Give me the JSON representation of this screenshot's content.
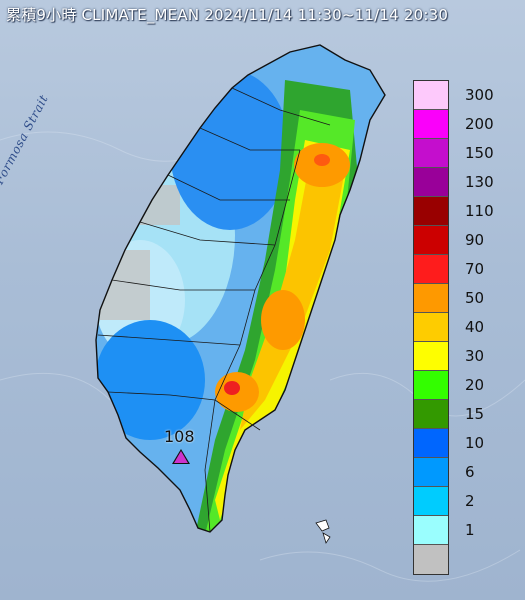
{
  "title": "累積9小時 CLIMATE_MEAN 2024/11/14 11:30~11/14 20:30",
  "strait_label": "Formosa Strait",
  "station": {
    "label": "108",
    "marker_color": "#cc33cc"
  },
  "legend": [
    {
      "label": "300",
      "color": "#fdc9fb"
    },
    {
      "label": "200",
      "color": "#fa00fa"
    },
    {
      "label": "150",
      "color": "#c40ecd"
    },
    {
      "label": "130",
      "color": "#990099"
    },
    {
      "label": "110",
      "color": "#990000"
    },
    {
      "label": "90",
      "color": "#cc0000"
    },
    {
      "label": "70",
      "color": "#fe1c1c"
    },
    {
      "label": "50",
      "color": "#fe9900"
    },
    {
      "label": "40",
      "color": "#fecc00"
    },
    {
      "label": "30",
      "color": "#fefe00"
    },
    {
      "label": "20",
      "color": "#33fe00"
    },
    {
      "label": "15",
      "color": "#339900"
    },
    {
      "label": "10",
      "color": "#0066fe"
    },
    {
      "label": "6",
      "color": "#0099fe"
    },
    {
      "label": "2",
      "color": "#00ccfe"
    },
    {
      "label": "1",
      "color": "#9afefe"
    },
    {
      "label": "",
      "color": "#c1c1c1"
    }
  ]
}
